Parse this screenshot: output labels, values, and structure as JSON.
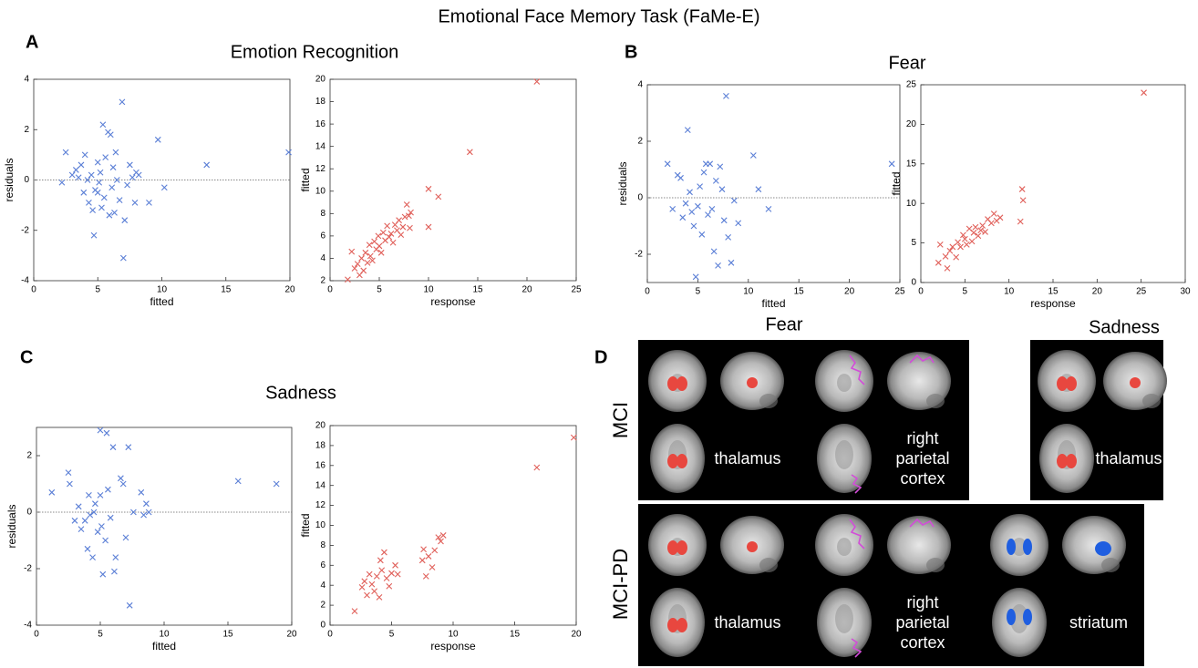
{
  "title": "Emotional Face Memory Task (FaMe-E)",
  "panel_labels": [
    "A",
    "B",
    "C",
    "D"
  ],
  "panel_titles": [
    "Emotion Recognition",
    "Fear",
    "Sadness"
  ],
  "chart_data": [
    {
      "type": "scatter",
      "xlabel": "fitted",
      "ylabel": "residuals",
      "color": "#5b7fd6",
      "zero_line": true,
      "xlim": [
        0,
        20
      ],
      "ylim": [
        -4,
        4
      ],
      "xticks": [
        0,
        5,
        10,
        15,
        20
      ],
      "yticks": [
        -4,
        -2,
        0,
        2,
        4
      ],
      "x": [
        2.2,
        2.5,
        3,
        3.3,
        3.5,
        3.7,
        3.9,
        4,
        4.2,
        4.3,
        4.5,
        4.6,
        4.7,
        4.8,
        5,
        5,
        5.1,
        5.2,
        5.3,
        5.4,
        5.5,
        5.6,
        5.8,
        5.9,
        6,
        6.1,
        6.2,
        6.3,
        6.4,
        6.5,
        6.7,
        6.9,
        7,
        7.1,
        7.3,
        7.5,
        7.7,
        7.9,
        8,
        8.2,
        9,
        9.7,
        10.2,
        13.5,
        19.9
      ],
      "values": [
        -0.1,
        1.1,
        0.2,
        0.4,
        0.1,
        0.6,
        -0.5,
        1,
        0,
        -0.9,
        0.2,
        -1.2,
        -2.2,
        -0.4,
        0.7,
        -0.5,
        -0.1,
        0.3,
        -1.1,
        2.2,
        -0.7,
        0.9,
        1.9,
        -1.4,
        1.8,
        -0.3,
        0.5,
        -1.3,
        1.1,
        0,
        -0.8,
        3.1,
        -3.1,
        -1.6,
        -0.2,
        0.6,
        0.1,
        -0.9,
        0.3,
        0.2,
        -0.9,
        1.6,
        -0.3,
        0.6,
        1.1
      ]
    },
    {
      "type": "scatter",
      "xlabel": "response",
      "ylabel": "fitted",
      "color": "#e0605a",
      "zero_line": false,
      "xlim": [
        0,
        25
      ],
      "ylim": [
        2,
        20
      ],
      "xticks": [
        0,
        5,
        10,
        15,
        20,
        25
      ],
      "yticks": [
        2,
        4,
        6,
        8,
        10,
        12,
        14,
        16,
        18,
        20
      ],
      "x": [
        1.8,
        2.2,
        2.5,
        2.8,
        3,
        3.2,
        3.4,
        3.6,
        3.8,
        4,
        4.1,
        4.3,
        4.5,
        4.7,
        4.9,
        5,
        5.2,
        5.4,
        5.6,
        5.8,
        6,
        6.2,
        6.4,
        6.6,
        6.8,
        7,
        7.2,
        7.4,
        7.6,
        7.8,
        8,
        8.1,
        8.2,
        10,
        10,
        11,
        14.2,
        21
      ],
      "values": [
        2.1,
        4.6,
        3.1,
        3.5,
        2.5,
        4,
        2.9,
        4.5,
        3.6,
        5.2,
        4.2,
        3.8,
        5.5,
        4.8,
        6,
        5.1,
        4.5,
        6.3,
        5.6,
        6.9,
        5.9,
        6.2,
        5.4,
        7,
        6.5,
        7.4,
        6.1,
        6.8,
        7.7,
        8.8,
        7.8,
        6.7,
        8.1,
        10.2,
        6.8,
        9.5,
        13.5,
        19.8
      ]
    },
    {
      "type": "scatter",
      "xlabel": "fitted",
      "ylabel": "residuals",
      "color": "#5b7fd6",
      "zero_line": true,
      "xlim": [
        0,
        25
      ],
      "ylim": [
        -3,
        4
      ],
      "xticks": [
        0,
        5,
        10,
        15,
        20,
        25
      ],
      "yticks": [
        -2,
        0,
        2,
        4
      ],
      "x": [
        2,
        2.5,
        3,
        3.3,
        3.5,
        3.8,
        4,
        4.2,
        4.4,
        4.6,
        4.8,
        5,
        5.2,
        5.4,
        5.6,
        5.8,
        6,
        6.2,
        6.4,
        6.6,
        6.8,
        7,
        7.2,
        7.4,
        7.6,
        7.8,
        8,
        8.3,
        8.6,
        9,
        10.5,
        11,
        12,
        24.2
      ],
      "values": [
        1.2,
        -0.4,
        0.8,
        0.7,
        -0.7,
        -0.2,
        2.4,
        0.2,
        -0.5,
        -1,
        -2.8,
        -0.3,
        0.4,
        -1.3,
        0.9,
        1.2,
        -0.6,
        1.2,
        -0.4,
        -1.9,
        0.6,
        -2.4,
        1.1,
        0.3,
        -0.8,
        3.6,
        -1.4,
        -2.3,
        -0.1,
        -0.9,
        1.5,
        0.3,
        -0.4,
        1.2
      ]
    },
    {
      "type": "scatter",
      "xlabel": "response",
      "ylabel": "fitted",
      "color": "#e0605a",
      "zero_line": false,
      "xlim": [
        0,
        30
      ],
      "ylim": [
        0,
        25
      ],
      "xticks": [
        0,
        5,
        10,
        15,
        20,
        25,
        30
      ],
      "yticks": [
        0,
        5,
        10,
        15,
        20,
        25
      ],
      "x": [
        2,
        2.2,
        2.8,
        3,
        3.3,
        3.6,
        4,
        4.2,
        4.5,
        4.8,
        5,
        5.2,
        5.5,
        5.8,
        6,
        6.2,
        6.5,
        6.8,
        7,
        7.3,
        7.6,
        8,
        8.3,
        8.6,
        9,
        11.3,
        11.5,
        11.6,
        25.3
      ],
      "values": [
        2.5,
        4.8,
        3.3,
        1.8,
        4,
        4.5,
        3.2,
        5.1,
        4.5,
        6,
        5.5,
        4.8,
        6.8,
        5.2,
        6.3,
        7,
        5.9,
        6.6,
        7.2,
        6.4,
        8,
        7.5,
        8.7,
        7.8,
        8.2,
        7.7,
        11.8,
        10.4,
        24
      ]
    },
    {
      "type": "scatter",
      "xlabel": "fitted",
      "ylabel": "residuals",
      "color": "#5b7fd6",
      "zero_line": true,
      "xlim": [
        0,
        20
      ],
      "ylim": [
        -4,
        3
      ],
      "xticks": [
        0,
        5,
        10,
        15,
        20
      ],
      "yticks": [
        -4,
        -2,
        0,
        2
      ],
      "x": [
        1.2,
        2.5,
        2.6,
        3,
        3.3,
        3.5,
        3.8,
        4,
        4.1,
        4.2,
        4.4,
        4.5,
        4.6,
        4.8,
        5,
        5,
        5.1,
        5.2,
        5.4,
        5.5,
        5.6,
        5.8,
        6,
        6.1,
        6.2,
        6.6,
        6.8,
        7,
        7.2,
        7.3,
        7.6,
        8.2,
        8.4,
        8.6,
        8.8,
        15.8,
        18.8
      ],
      "values": [
        0.7,
        1.4,
        1,
        -0.3,
        0.2,
        -0.6,
        -0.3,
        -1.3,
        0.6,
        -0.1,
        -1.6,
        0,
        0.3,
        -0.7,
        2.9,
        0.6,
        -0.5,
        -2.2,
        -1,
        2.8,
        0.8,
        -0.2,
        2.3,
        -2.1,
        -1.6,
        1.2,
        1,
        -0.9,
        2.3,
        -3.3,
        0,
        0.7,
        -0.1,
        0.3,
        0,
        1.1,
        1
      ]
    },
    {
      "type": "scatter",
      "xlabel": "response",
      "ylabel": "fitted",
      "color": "#e0605a",
      "zero_line": false,
      "xlim": [
        0,
        20
      ],
      "ylim": [
        0,
        20
      ],
      "xticks": [
        0,
        5,
        10,
        15,
        20
      ],
      "yticks": [
        0,
        2,
        4,
        6,
        8,
        10,
        12,
        14,
        16,
        18,
        20
      ],
      "x": [
        2,
        2.6,
        2.8,
        3,
        3.2,
        3.4,
        3.6,
        3.8,
        4,
        4.1,
        4.2,
        4.4,
        4.6,
        4.8,
        5,
        5.3,
        5.5,
        7.5,
        7.6,
        7.8,
        8,
        8.3,
        8.5,
        8.8,
        9,
        9.2,
        16.8,
        19.8
      ],
      "values": [
        1.4,
        3.8,
        4.4,
        3,
        5.1,
        4.1,
        3.4,
        4.9,
        2.8,
        6.5,
        5.5,
        7.3,
        4.7,
        3.9,
        5.2,
        6,
        5.1,
        6.5,
        7.6,
        4.9,
        6.9,
        5.8,
        7.5,
        8.8,
        8.4,
        9,
        15.8,
        18.8
      ]
    }
  ],
  "brain_panel": {
    "group_titles": [
      "Fear",
      "Sadness"
    ],
    "row_labels": [
      "MCI",
      "MCI-PD"
    ],
    "region_labels": [
      "thalamus",
      "right parietal cortex",
      "thalamus",
      "thalamus",
      "right parietal cortex",
      "striatum"
    ]
  }
}
